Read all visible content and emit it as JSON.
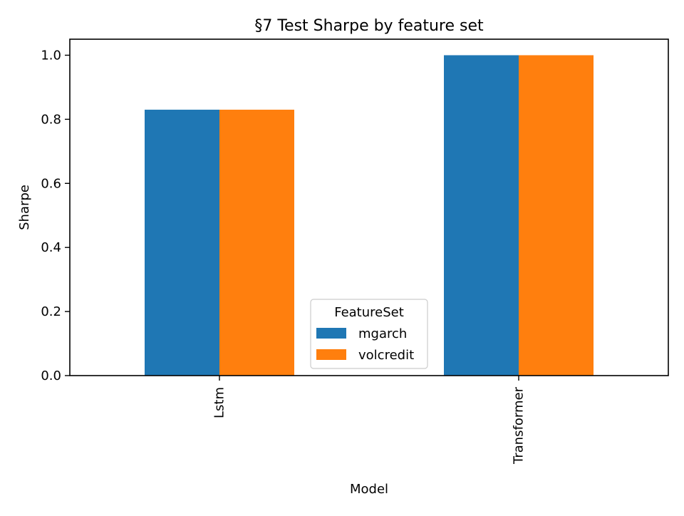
{
  "chart_data": {
    "type": "bar",
    "title": "§7 Test Sharpe by feature set",
    "xlabel": "Model",
    "ylabel": "Sharpe",
    "categories": [
      "Lstm",
      "Transformer"
    ],
    "series": [
      {
        "name": "mgarch",
        "values": [
          0.83,
          1.0
        ],
        "color": "#1f77b4"
      },
      {
        "name": "volcredit",
        "values": [
          0.83,
          1.0
        ],
        "color": "#ff7f0e"
      }
    ],
    "ylim": [
      0,
      1.05
    ],
    "yticks": [
      0.0,
      0.2,
      0.4,
      0.6,
      0.8,
      1.0
    ],
    "ytick_labels": [
      "0.0",
      "0.2",
      "0.4",
      "0.6",
      "0.8",
      "1.0"
    ],
    "grid": false,
    "legend": {
      "title": "FeatureSet",
      "placement": "lower-center"
    }
  }
}
